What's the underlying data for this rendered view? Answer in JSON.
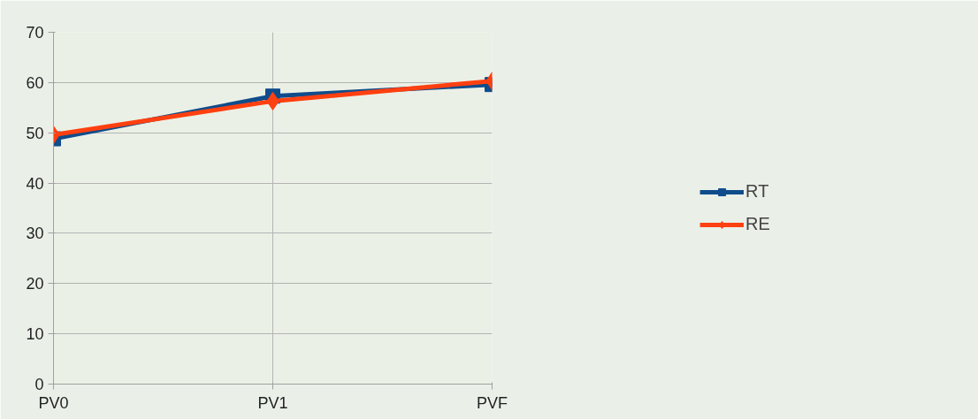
{
  "chart_data": {
    "type": "line",
    "categories": [
      "PV0",
      "PV1",
      "PVF"
    ],
    "series": [
      {
        "name": "RT",
        "color": "#0f4c8c",
        "values": [
          48.8,
          57.3,
          59.6
        ],
        "marker": "square"
      },
      {
        "name": "RE",
        "color": "#ff4010",
        "values": [
          49.6,
          56.3,
          60.3
        ],
        "marker": "diamond"
      }
    ],
    "ylim": [
      0,
      70
    ],
    "yticks": [
      0,
      10,
      20,
      30,
      40,
      50,
      60,
      70
    ],
    "grid": true,
    "legend": "right",
    "line_style": "solid"
  }
}
